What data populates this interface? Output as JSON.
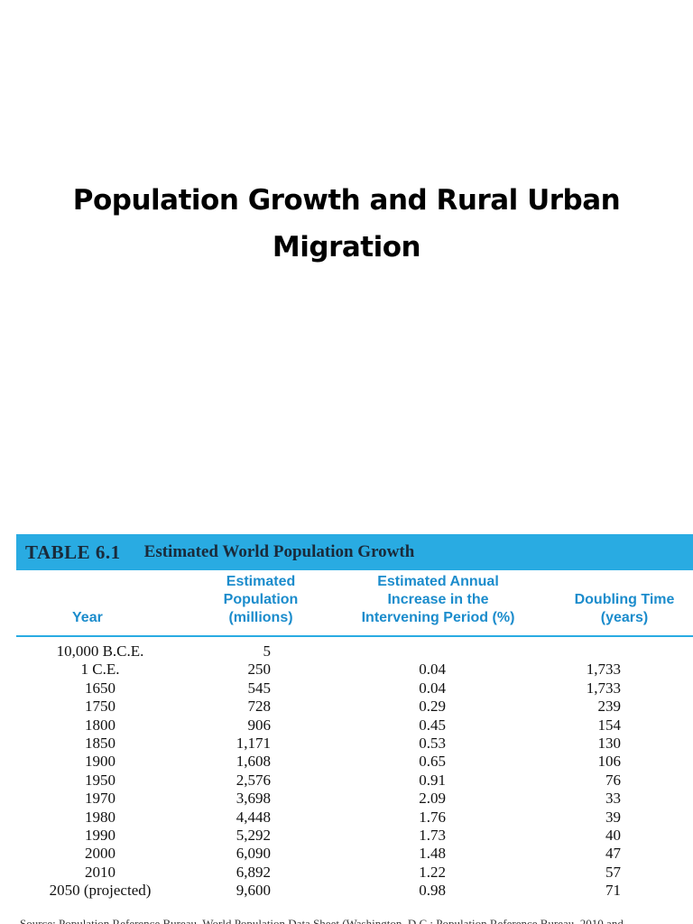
{
  "slide": {
    "title_line1": "Population Growth and Rural Urban",
    "title_line2": "Migration"
  },
  "table": {
    "number": "TABLE 6.1",
    "caption": "Estimated World Population Growth",
    "headers": {
      "year": "Year",
      "population": "Estimated\nPopulation\n(millions)",
      "increase": "Estimated Annual\nIncrease in the\nIntervening Period (%)",
      "doubling": "Doubling Time\n(years)"
    },
    "rows": [
      {
        "year": "10,000 B.C.E.",
        "population": "5",
        "increase": "",
        "doubling": ""
      },
      {
        "year": "1 C.E.",
        "population": "250",
        "increase": "0.04",
        "doubling": "1,733"
      },
      {
        "year": "1650",
        "population": "545",
        "increase": "0.04",
        "doubling": "1,733"
      },
      {
        "year": "1750",
        "population": "728",
        "increase": "0.29",
        "doubling": "239"
      },
      {
        "year": "1800",
        "population": "906",
        "increase": "0.45",
        "doubling": "154"
      },
      {
        "year": "1850",
        "population": "1,171",
        "increase": "0.53",
        "doubling": "130"
      },
      {
        "year": "1900",
        "population": "1,608",
        "increase": "0.65",
        "doubling": "106"
      },
      {
        "year": "1950",
        "population": "2,576",
        "increase": "0.91",
        "doubling": "76"
      },
      {
        "year": "1970",
        "population": "3,698",
        "increase": "2.09",
        "doubling": "33"
      },
      {
        "year": "1980",
        "population": "4,448",
        "increase": "1.76",
        "doubling": "39"
      },
      {
        "year": "1990",
        "population": "5,292",
        "increase": "1.73",
        "doubling": "40"
      },
      {
        "year": "2000",
        "population": "6,090",
        "increase": "1.48",
        "doubling": "47"
      },
      {
        "year": "2010",
        "population": "6,892",
        "increase": "1.22",
        "doubling": "57"
      },
      {
        "year": "2050 (projected)",
        "population": "9,600",
        "increase": "0.98",
        "doubling": "71"
      }
    ],
    "source": "Source: Population Reference Bureau, World Population Data Sheet (Washington, D.C.: Population Reference Bureau, 2010 and"
  },
  "colors": {
    "banner": "#29abe2",
    "header_text": "#1b8ccc"
  }
}
